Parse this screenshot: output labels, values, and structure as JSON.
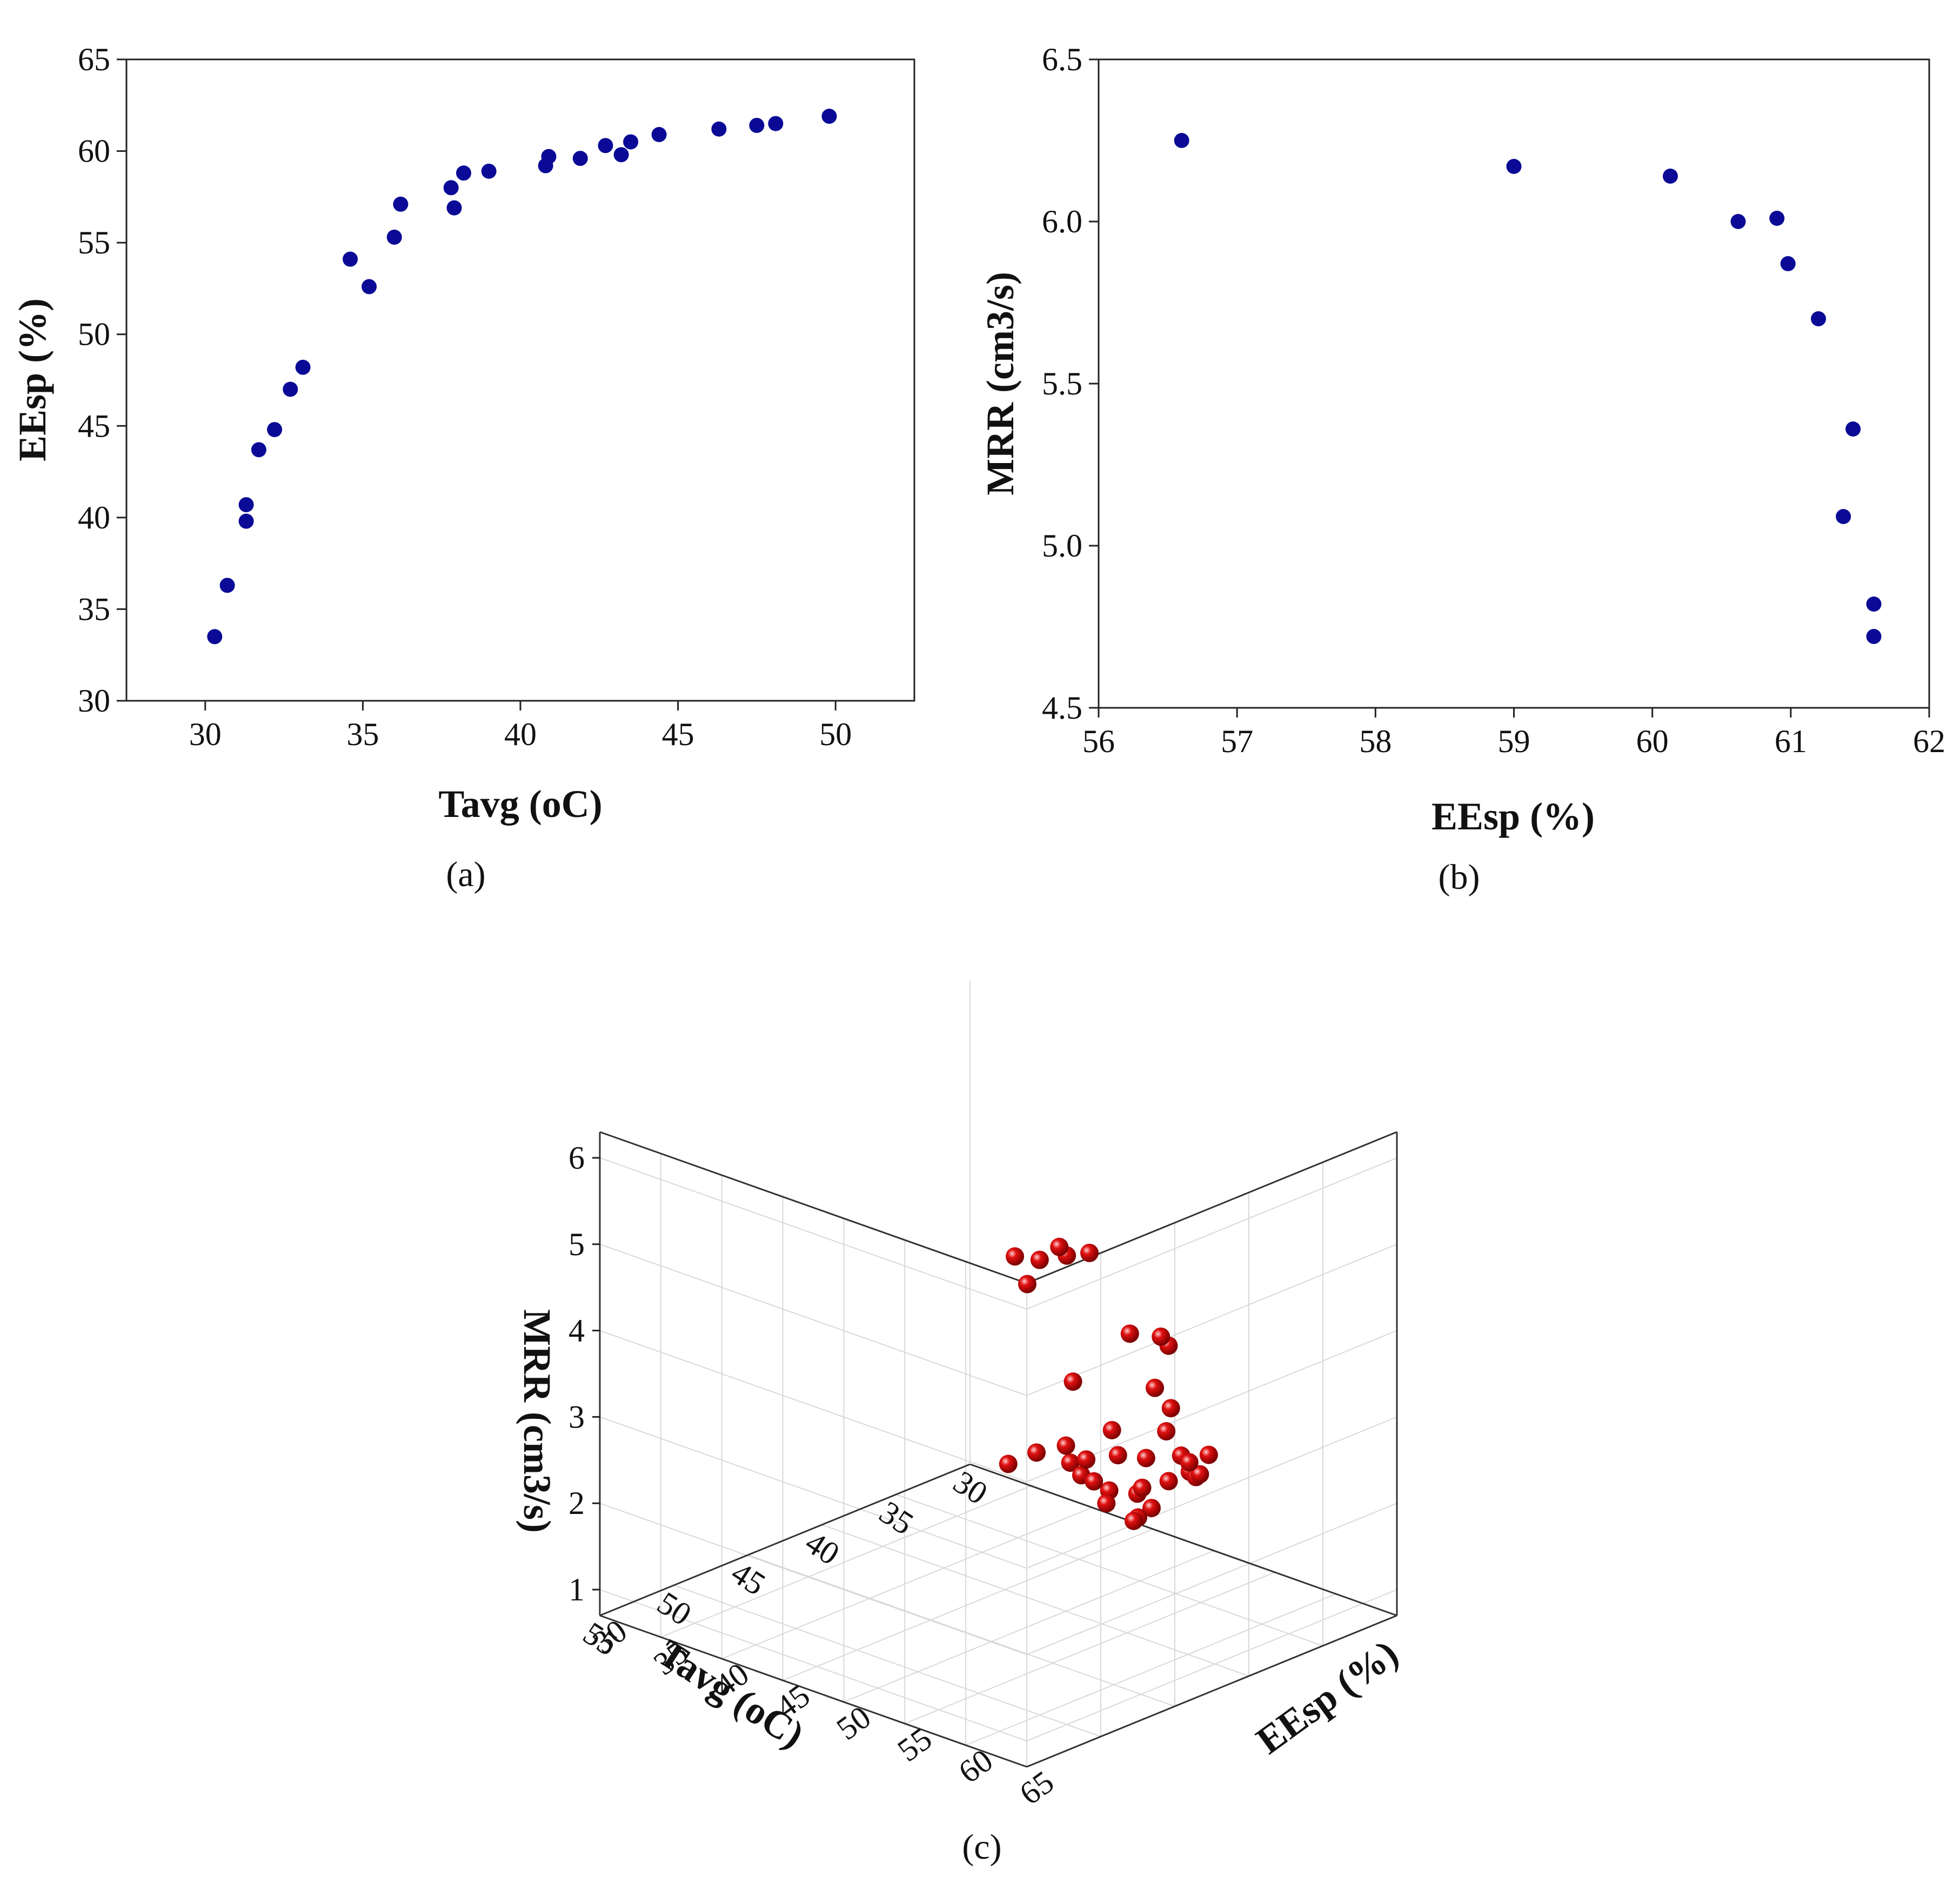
{
  "chart_data": [
    {
      "id": "a",
      "type": "scatter",
      "panel_label": "(a)",
      "xlabel": "Tavg (oC)",
      "ylabel": "EEsp (%)",
      "xlim": [
        27.5,
        52.5
      ],
      "ylim": [
        30,
        65
      ],
      "xticks": [
        30,
        35,
        40,
        45,
        50
      ],
      "yticks": [
        30,
        35,
        40,
        45,
        50,
        55,
        60,
        65
      ],
      "marker_color": "#0a0a96",
      "x": [
        30.3,
        30.7,
        31.3,
        31.3,
        31.7,
        32.2,
        32.7,
        33.1,
        34.6,
        35.2,
        36.0,
        36.2,
        37.8,
        37.9,
        38.2,
        39.0,
        40.8,
        40.9,
        41.9,
        42.7,
        43.2,
        43.5,
        44.4,
        46.3,
        47.5,
        48.1,
        49.8
      ],
      "y": [
        33.5,
        36.3,
        39.8,
        40.7,
        43.7,
        44.8,
        47.0,
        48.2,
        54.1,
        52.6,
        55.3,
        57.1,
        58.0,
        56.9,
        58.8,
        58.9,
        59.2,
        59.7,
        59.6,
        60.3,
        59.8,
        60.5,
        60.9,
        61.2,
        61.4,
        61.5,
        61.9
      ]
    },
    {
      "id": "b",
      "type": "scatter",
      "panel_label": "(b)",
      "xlabel": "EEsp (%)",
      "ylabel": "MRR (cm3/s)",
      "xlim": [
        56,
        62
      ],
      "ylim": [
        4.5,
        6.5
      ],
      "xticks": [
        56,
        57,
        58,
        59,
        60,
        61,
        62
      ],
      "yticks": [
        4.5,
        5.0,
        5.5,
        6.0,
        6.5
      ],
      "marker_color": "#0a0a96",
      "x": [
        56.6,
        59.0,
        60.13,
        60.62,
        60.9,
        60.98,
        61.2,
        61.45,
        61.38,
        61.6,
        61.6
      ],
      "y": [
        6.25,
        6.17,
        6.14,
        6.0,
        6.01,
        5.87,
        5.7,
        5.36,
        5.09,
        4.82,
        4.72
      ]
    },
    {
      "id": "c",
      "type": "scatter3d",
      "panel_label": "(c)",
      "xlabel": "Tavg (oC)",
      "ylabel": "EEsp (%)",
      "zlabel": "MRR (cm3/s)",
      "xlim": [
        30,
        55
      ],
      "ylim": [
        30,
        65
      ],
      "zlim": [
        0.7,
        6.3
      ],
      "xticks": [
        30,
        35,
        40,
        45,
        50,
        55
      ],
      "yticks": [
        30,
        35,
        40,
        45,
        50,
        55,
        60,
        65
      ],
      "zticks": [
        1,
        2,
        3,
        4,
        5,
        6
      ],
      "marker_color": "#e01010",
      "x": [
        30.3,
        30.7,
        31.3,
        31.3,
        31.7,
        32.2,
        32.7,
        33.1,
        34.6,
        35.2,
        36.0,
        36.2,
        37.8,
        37.9,
        38.2,
        39.0,
        40.8,
        40.9,
        41.9,
        42.7,
        43.2,
        43.5,
        44.4,
        46.3,
        47.5,
        48.1,
        49.8,
        38.5,
        41.0,
        44.0,
        46.0,
        48.5,
        49.0,
        51.0,
        52.0,
        53.0,
        50.0,
        45.0
      ],
      "y": [
        33.5,
        36.3,
        39.8,
        40.7,
        43.7,
        44.8,
        47.0,
        48.2,
        54.1,
        52.6,
        55.3,
        57.1,
        58.0,
        56.9,
        58.8,
        58.9,
        59.2,
        59.7,
        59.6,
        60.3,
        59.8,
        60.5,
        60.9,
        61.2,
        61.4,
        61.5,
        61.9,
        56.6,
        59.0,
        60.1,
        60.6,
        60.9,
        61.0,
        61.2,
        61.4,
        61.6,
        61.6,
        58.0
      ],
      "z": [
        0.9,
        1.2,
        1.3,
        1.2,
        1.9,
        1.7,
        1.4,
        1.9,
        2.1,
        2.0,
        2.3,
        2.6,
        2.5,
        2.7,
        2.6,
        2.8,
        3.3,
        3.6,
        3.9,
        2.6,
        2.5,
        2.9,
        2.6,
        3.1,
        3.3,
        3.6,
        3.9,
        4.0,
        4.4,
        4.7,
        2.9,
        4.5,
        6.0,
        6.1,
        5.9,
        6.3,
        6.2,
        5.6
      ]
    }
  ]
}
